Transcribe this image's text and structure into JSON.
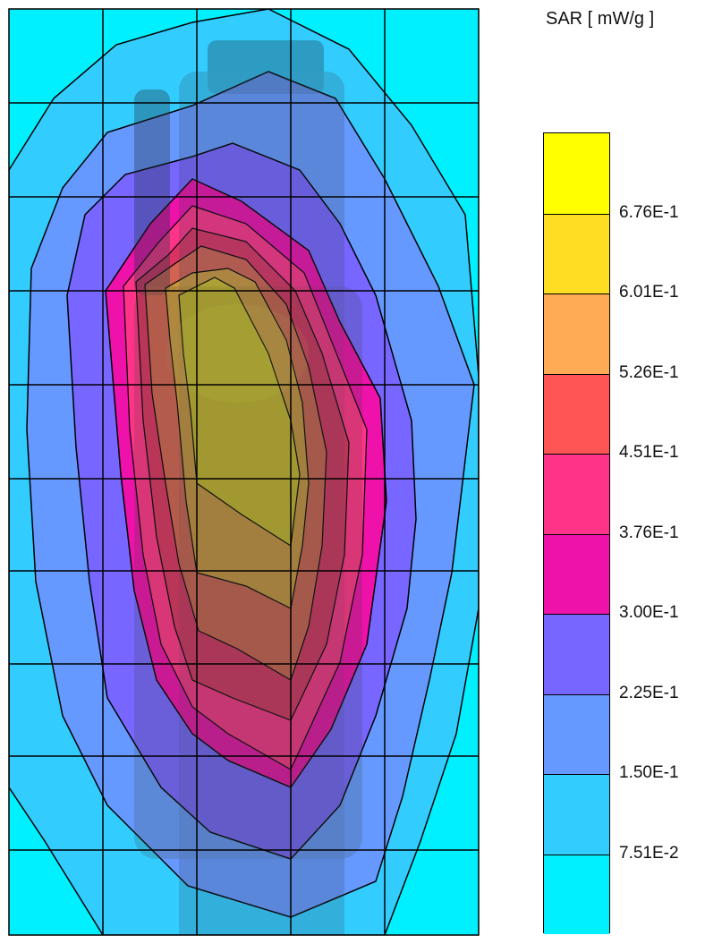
{
  "chart_data": {
    "type": "heatmap",
    "title": "",
    "colorbar_label": "SAR [ mW/g ]",
    "levels": [
      "6.76E-1",
      "6.01E-1",
      "5.26E-1",
      "4.51E-1",
      "3.76E-1",
      "3.00E-1",
      "2.25E-1",
      "1.50E-1",
      "7.51E-2"
    ],
    "band_colors": [
      "#ffff00",
      "#ffdd22",
      "#ffaa55",
      "#ff5555",
      "#ff3388",
      "#ee11aa",
      "#7766ff",
      "#6699ff",
      "#33ccff",
      "#00f0ff"
    ],
    "grid": true,
    "grid_rows": 10,
    "grid_cols": 5
  }
}
